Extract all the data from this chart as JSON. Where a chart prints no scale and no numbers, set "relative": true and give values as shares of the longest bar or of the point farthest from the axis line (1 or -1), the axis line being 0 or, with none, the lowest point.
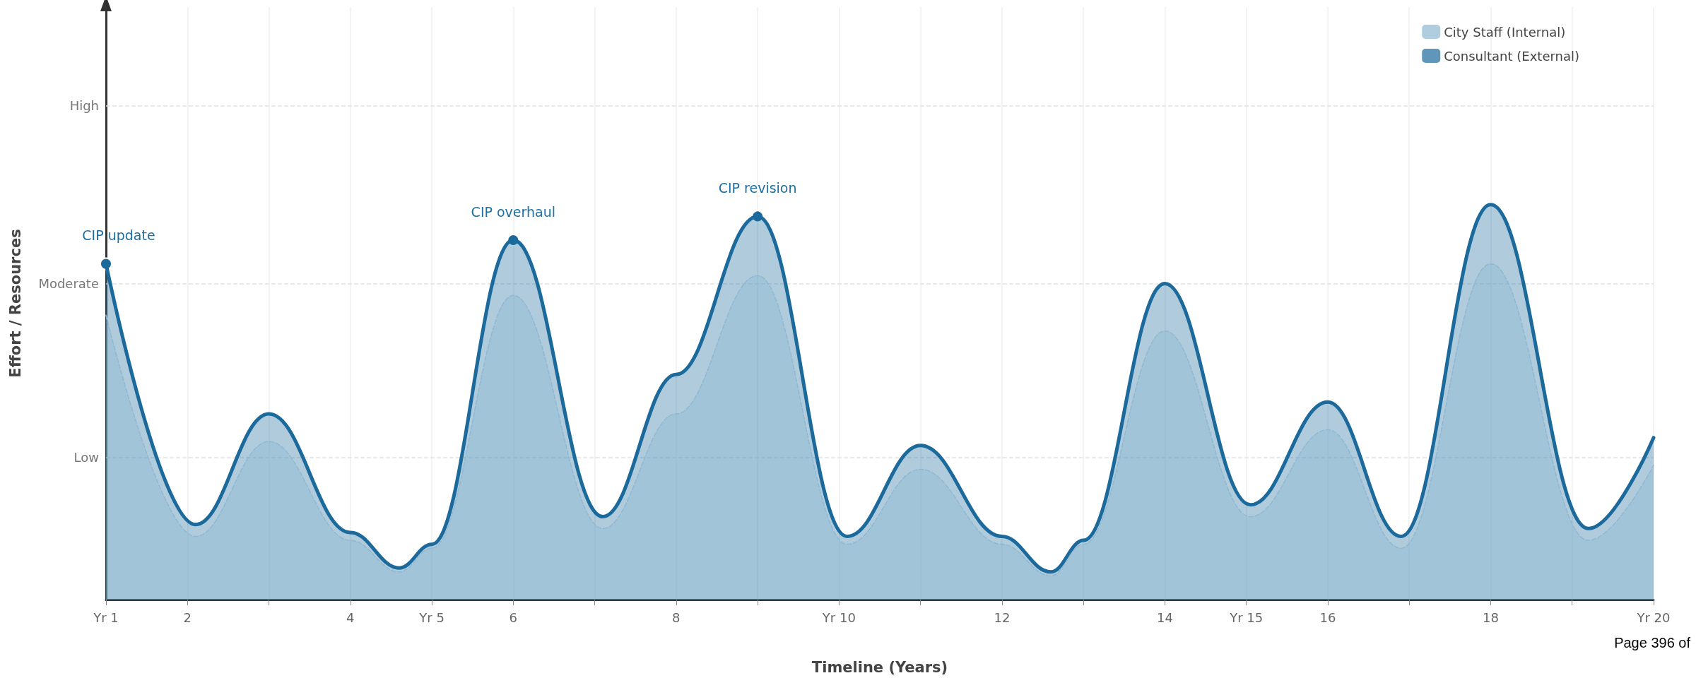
{
  "chart_data": {
    "type": "area",
    "xlabel": "Timeline (Years)",
    "ylabel": "Effort / Resources",
    "x": [
      1,
      2.1,
      3,
      4,
      4.6,
      5,
      6,
      7.1,
      8,
      9,
      10.1,
      11,
      12,
      12.6,
      13,
      14,
      15.05,
      16,
      16.9,
      18,
      19.2,
      20
    ],
    "stacked": true,
    "relative": true,
    "series": [
      {
        "name": "City Staff (Internal)",
        "color": "#8fb8d3",
        "line_style": "dashed",
        "values": [
          0.72,
          0.16,
          0.4,
          0.15,
          0.07,
          0.13,
          0.77,
          0.18,
          0.47,
          0.82,
          0.14,
          0.33,
          0.14,
          0.06,
          0.14,
          0.68,
          0.21,
          0.43,
          0.13,
          0.85,
          0.15,
          0.34
        ]
      },
      {
        "name": "Consultant (External)",
        "color": "#1b6a9b",
        "line_style": "solid",
        "values": [
          0.13,
          0.03,
          0.07,
          0.02,
          0.01,
          0.01,
          0.14,
          0.03,
          0.1,
          0.15,
          0.02,
          0.06,
          0.02,
          0.01,
          0.01,
          0.12,
          0.03,
          0.07,
          0.03,
          0.15,
          0.03,
          0.07
        ]
      }
    ],
    "xlim": [
      1,
      20
    ],
    "xticks": [
      {
        "value": 1,
        "label": "Yr 1"
      },
      2,
      {
        "value": 3,
        "label": null
      },
      4,
      {
        "value": 5,
        "label": "Yr 5"
      },
      6,
      {
        "value": 7,
        "label": null
      },
      8,
      {
        "value": 9,
        "label": null
      },
      {
        "value": 10,
        "label": "Yr 10"
      },
      {
        "value": 11,
        "label": null
      },
      12,
      {
        "value": 13,
        "label": null
      },
      14,
      {
        "value": 15,
        "label": "Yr 15"
      },
      16,
      {
        "value": 17,
        "label": null
      },
      18,
      {
        "value": 19,
        "label": null
      },
      {
        "value": 20,
        "label": "Yr 20"
      }
    ],
    "ref_lines": [
      {
        "axis": "y",
        "value": 0.36,
        "label": "Low",
        "line_style": "dashed",
        "color": "#dfe3e7"
      },
      {
        "axis": "y",
        "value": 0.8,
        "label": "Moderate",
        "line_style": "dashed",
        "color": "#dfe3e7"
      },
      {
        "axis": "y",
        "value": 1.25,
        "label": "High",
        "line_style": "dashed",
        "color": "#dfe3e7"
      }
    ],
    "grid": "x",
    "legend": "top right",
    "marker": "none",
    "annotations": [
      {
        "text": "CIP update",
        "x": 1,
        "y": 0.85
      },
      {
        "text": "CIP overhaul",
        "x": 6,
        "y": 0.91
      },
      {
        "text": "CIP revision",
        "x": 9,
        "y": 0.97
      },
      "Page 396 of"
    ]
  }
}
